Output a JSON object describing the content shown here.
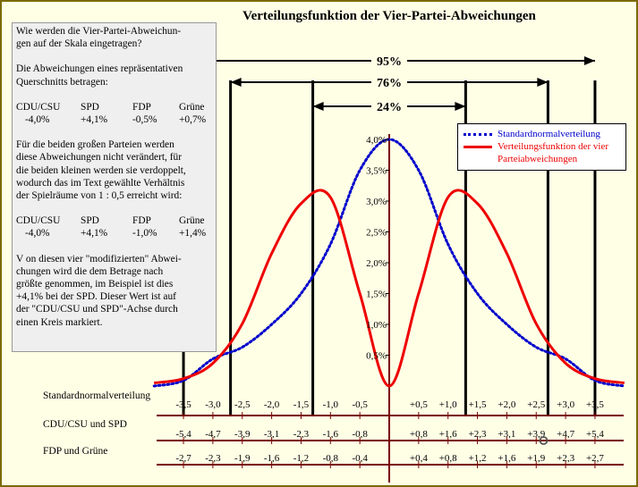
{
  "chart_data": {
    "type": "line",
    "title": "Verteilungsfunktion der Vier-Partei-Abweichungen",
    "y_ticks": [
      "0,5%",
      "1,0%",
      "1,5%",
      "2,0%",
      "2,5%",
      "3,0%",
      "3,5%",
      "4,0%"
    ],
    "ylim": [
      0,
      4.3
    ],
    "series": [
      {
        "name": "Standardnormalverteilung",
        "color": "#0000CC",
        "style": "dotted",
        "x": [
          -4,
          -3.5,
          -3,
          -2.5,
          -2,
          -1.5,
          -1,
          -0.5,
          0,
          0.5,
          1,
          1.5,
          2,
          2.5,
          3,
          3.5,
          4
        ],
        "y": [
          0,
          0.09,
          0.44,
          0.63,
          1.0,
          1.5,
          2.3,
          3.5,
          4.0,
          3.5,
          2.3,
          1.5,
          1.0,
          0.63,
          0.44,
          0.09,
          0
        ]
      },
      {
        "name": "Verteilungsfunktion der vier Parteiabweichungen",
        "color": "#EE0000",
        "style": "solid",
        "x": [
          -4,
          -3.5,
          -3,
          -2.5,
          -2,
          -1.5,
          -1,
          -0.5,
          0,
          0.5,
          1,
          1.5,
          2,
          2.5,
          3,
          3.5,
          4
        ],
        "y": [
          0.05,
          0.12,
          0.37,
          1.01,
          2.15,
          2.96,
          3.06,
          1.5,
          0,
          1.5,
          3.06,
          2.96,
          2.15,
          1.01,
          0.37,
          0.12,
          0.05
        ]
      }
    ],
    "intervals": [
      {
        "label": "95%",
        "from": -3.5,
        "to": 3.5
      },
      {
        "label": "76%",
        "from": -2.7,
        "to": 2.7
      },
      {
        "label": "24%",
        "from": -1.3,
        "to": 1.3
      }
    ],
    "vertical_markers": [
      -3.5,
      -2.7,
      -1.3,
      1.3,
      2.7,
      3.5
    ],
    "axes": [
      {
        "label": "Standardnormalverteilung",
        "ticks": [
          "-3,5",
          "-3,0",
          "-2,5",
          "-2,0",
          "-1,5",
          "-1,0",
          "-0,5",
          "+0,5",
          "+1,0",
          "+1,5",
          "+2,0",
          "+2,5",
          "+3,0",
          "+3,5"
        ]
      },
      {
        "label": "CDU/CSU und SPD",
        "ticks": [
          "-5,4",
          "-4,7",
          "-3,9",
          "-3,1",
          "-2,3",
          "-1,6",
          "-0,8",
          "+0,8",
          "+1,6",
          "+2,3",
          "+3,1",
          "+3,9",
          "+4,7",
          "+5,4"
        ],
        "marker": "+4,1"
      },
      {
        "label": "FDP und Grüne",
        "ticks": [
          "-2,7",
          "-2,3",
          "-1,9",
          "-1,6",
          "-1,2",
          "-0,8",
          "-0,4",
          "+0,4",
          "+0,8",
          "+1,2",
          "+1,6",
          "+1,9",
          "+2,3",
          "+2,7"
        ]
      }
    ],
    "legend": "top-right"
  },
  "text_box": {
    "question": "Wie werden die Vier-Partei-Abweichun-\ngen auf der Skala eingetragen?",
    "intro": "Die Abweichungen eines repräsentativen\nQuerschnitts betragen:",
    "table1": {
      "headers": [
        "CDU/CSU",
        "SPD",
        "FDP",
        "Grüne"
      ],
      "values": [
        "-4,0%",
        "+4,1%",
        "-0,5%",
        "+0,7%"
      ]
    },
    "explanation": "Für die beiden großen Parteien werden\ndiese Abweichungen nicht verändert, für\ndie beiden kleinen werden sie verdoppelt,\nwodurch das im Text gewählte Verhältnis\nder Spielräume von 1 : 0,5 erreicht wird:",
    "table2": {
      "headers": [
        "CDU/CSU",
        "SPD",
        "FDP",
        "Grüne"
      ],
      "values": [
        "-4,0%",
        "+4,1%",
        "-1,0%",
        "+1,4%"
      ]
    },
    "conclusion": "V on diesen vier \"modifizierten\" Abwei-\nchungen wird die dem Betrage nach\ngrößte genommen, im Beispiel ist dies\n+4,1% bei der SPD. Dieser Wert ist auf\nder \"CDU/CSU und SPD\"-Achse durch\neinen Kreis markiert."
  }
}
